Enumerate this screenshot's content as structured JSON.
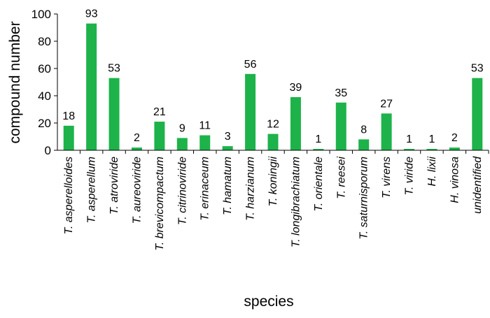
{
  "chart_data": {
    "type": "bar",
    "title": "",
    "xlabel": "species",
    "ylabel": "compound number",
    "ylim": [
      0,
      100
    ],
    "yticks": [
      0,
      20,
      40,
      60,
      80,
      100
    ],
    "grid": false,
    "legend": "none",
    "bar_color": "#1db34a",
    "categories": [
      "T. asperelloides",
      "T. asperellum",
      "T. atroviride",
      "T. aureoviride",
      "T. brevicompactum",
      "T. citrinoviride",
      "T. erinaceum",
      "T. hamatum",
      "T. harzianum",
      "T. koningii",
      "T. longibrachiatum",
      "T. orientale",
      "T. reesei",
      "T. saturnisporum",
      "T. virens",
      "T. viride",
      "H. lixii",
      "H. vinosa",
      "unidentified"
    ],
    "values": [
      18,
      93,
      53,
      2,
      21,
      9,
      11,
      3,
      56,
      12,
      39,
      1,
      35,
      8,
      27,
      1,
      1,
      2,
      53
    ]
  }
}
